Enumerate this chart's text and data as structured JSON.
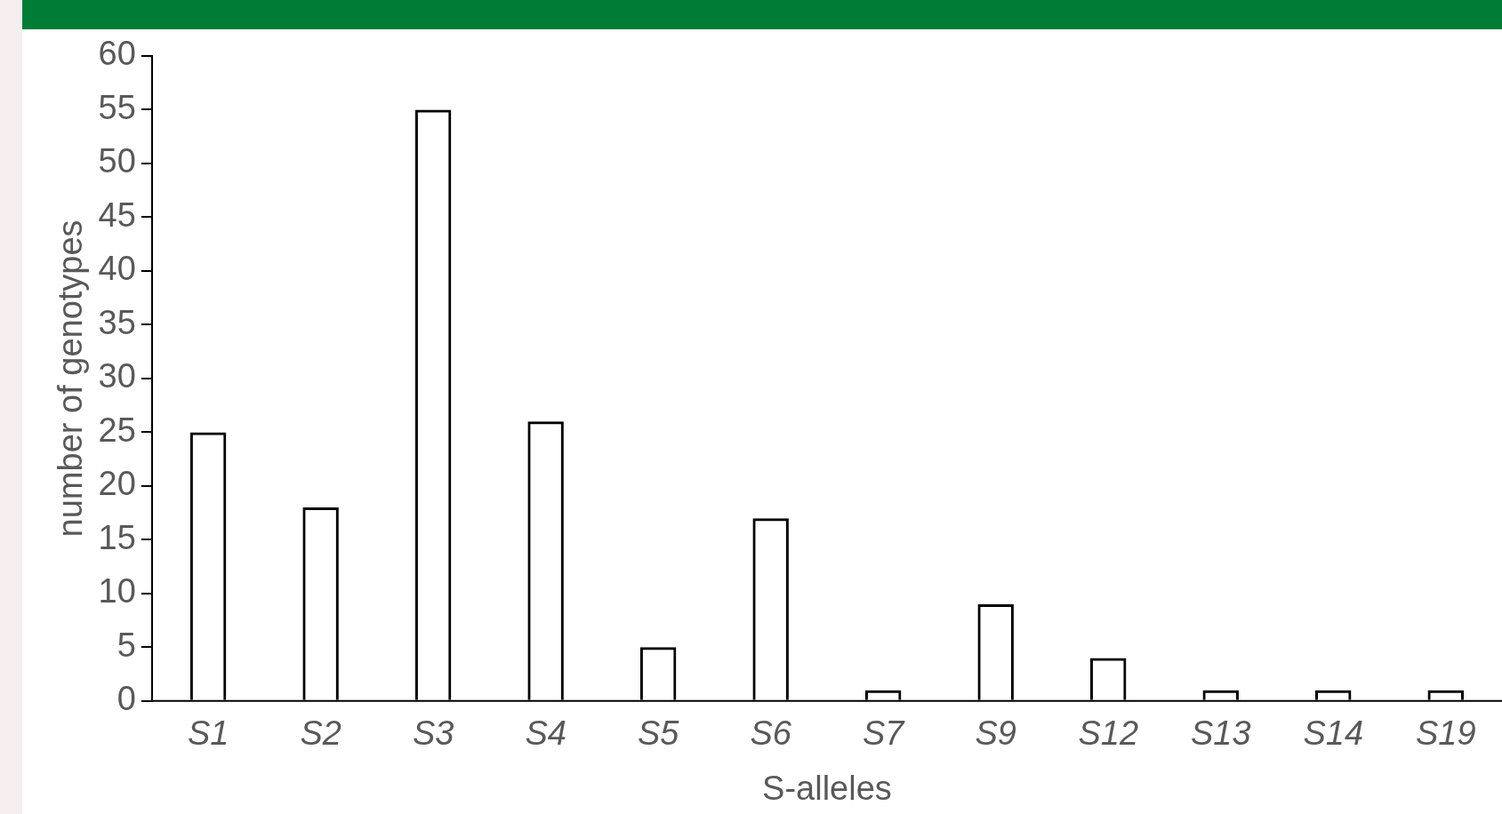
{
  "chart_data": {
    "type": "bar",
    "xlabel": "S-alleles",
    "ylabel": "number of genotypes",
    "categories": [
      "S1",
      "S2",
      "S3",
      "S4",
      "S5",
      "S6",
      "S7",
      "S9",
      "S12",
      "S13",
      "S14",
      "S19"
    ],
    "values": [
      25,
      18,
      55,
      26,
      5,
      17,
      1,
      9,
      4,
      1,
      1,
      1
    ],
    "color": "#000000",
    "ylim": [
      0,
      60
    ],
    "yticks": [
      0,
      5,
      10,
      15,
      20,
      25,
      30,
      35,
      40,
      45,
      50,
      55,
      60
    ],
    "grid": false,
    "legend": false
  }
}
